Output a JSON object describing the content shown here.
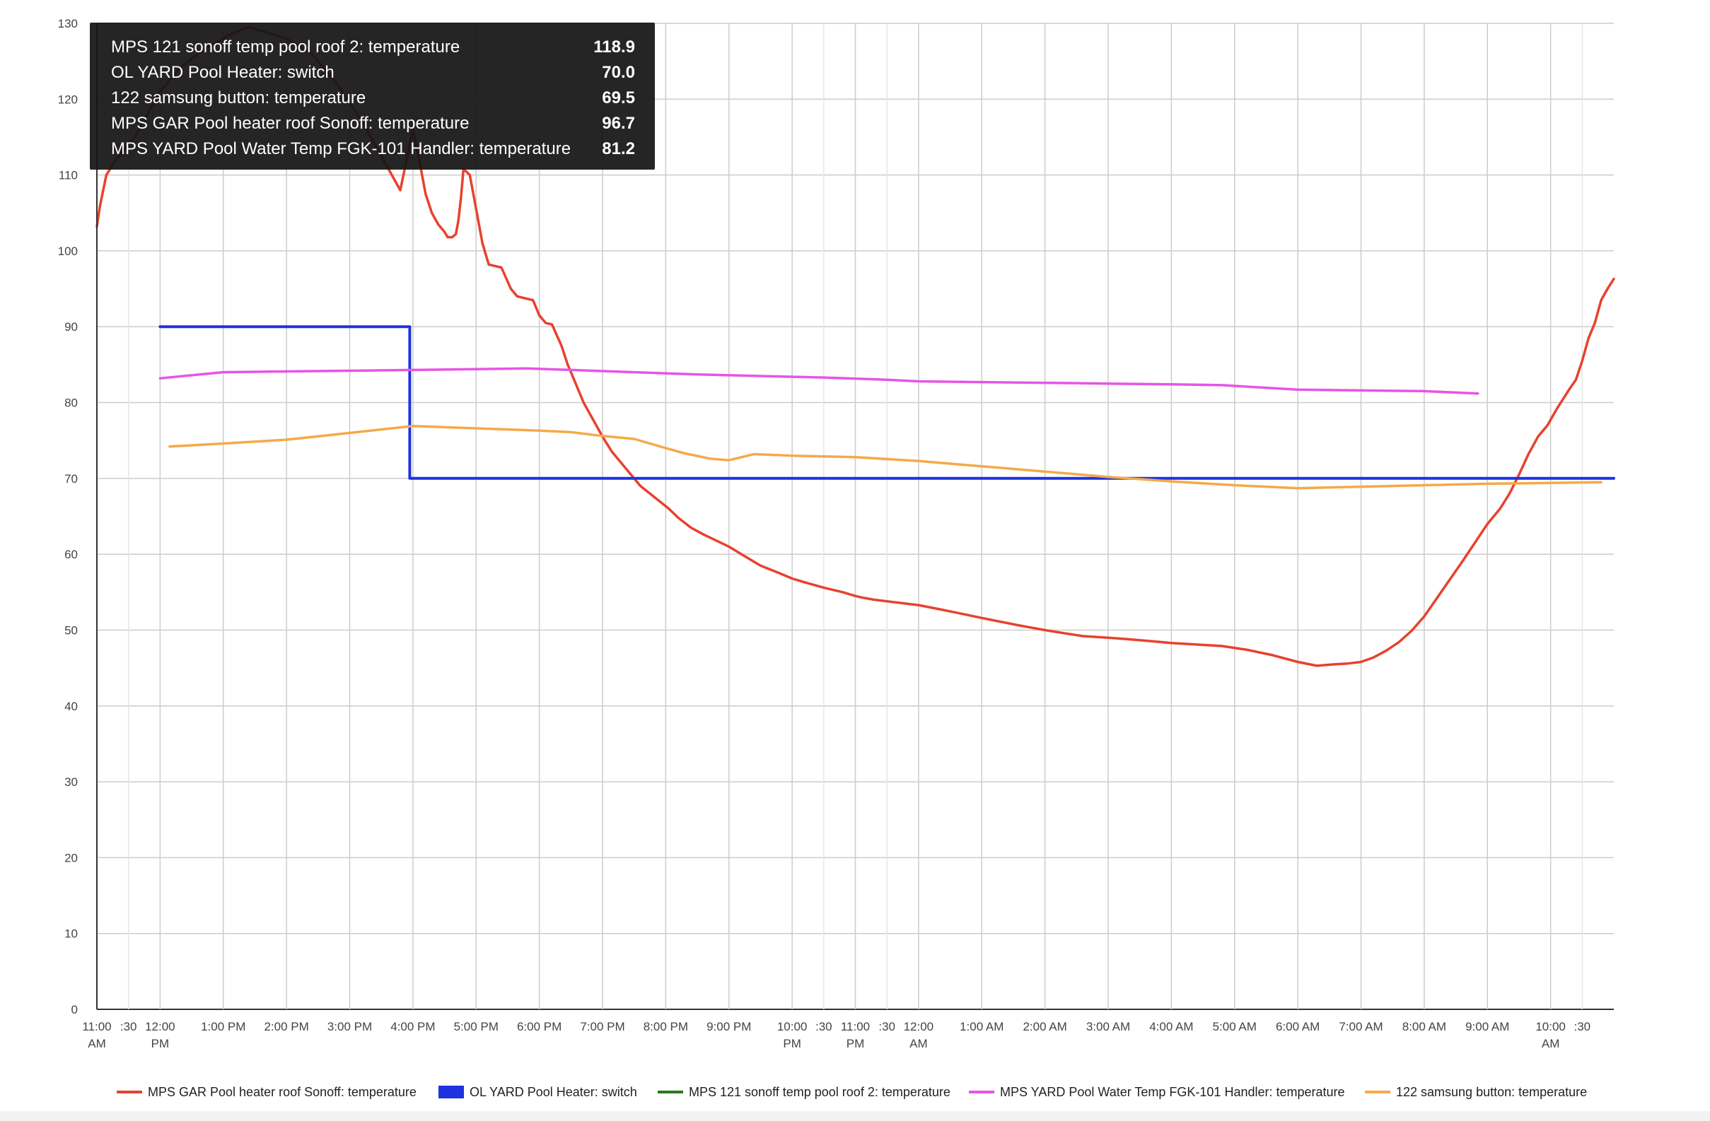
{
  "chart_data": {
    "type": "line",
    "title": "",
    "xlabel": "",
    "ylabel": "",
    "ylim": [
      0,
      130
    ],
    "y_ticks": [
      0,
      10,
      20,
      30,
      40,
      50,
      60,
      70,
      80,
      90,
      100,
      110,
      120,
      130
    ],
    "grid": true,
    "x_unit": "hours since 11:00 AM",
    "xlim": [
      0,
      24
    ],
    "x_ticks": [
      {
        "x": 0,
        "label": "11:00",
        "label2": "AM"
      },
      {
        "x": 0.5,
        "label": ":30",
        "label2": ""
      },
      {
        "x": 1,
        "label": "12:00",
        "label2": "PM"
      },
      {
        "x": 2,
        "label": "1:00 PM",
        "label2": ""
      },
      {
        "x": 3,
        "label": "2:00 PM",
        "label2": ""
      },
      {
        "x": 4,
        "label": "3:00 PM",
        "label2": ""
      },
      {
        "x": 5,
        "label": "4:00 PM",
        "label2": ""
      },
      {
        "x": 6,
        "label": "5:00 PM",
        "label2": ""
      },
      {
        "x": 7,
        "label": "6:00 PM",
        "label2": ""
      },
      {
        "x": 8,
        "label": "7:00 PM",
        "label2": ""
      },
      {
        "x": 9,
        "label": "8:00 PM",
        "label2": ""
      },
      {
        "x": 10,
        "label": "9:00 PM",
        "label2": ""
      },
      {
        "x": 11,
        "label": "10:00",
        "label2": "PM"
      },
      {
        "x": 11.5,
        "label": ":30",
        "label2": ""
      },
      {
        "x": 12,
        "label": "11:00",
        "label2": "PM"
      },
      {
        "x": 12.5,
        "label": ":30",
        "label2": ""
      },
      {
        "x": 13,
        "label": "12:00",
        "label2": "AM"
      },
      {
        "x": 14,
        "label": "1:00 AM",
        "label2": ""
      },
      {
        "x": 15,
        "label": "2:00 AM",
        "label2": ""
      },
      {
        "x": 16,
        "label": "3:00 AM",
        "label2": ""
      },
      {
        "x": 17,
        "label": "4:00 AM",
        "label2": ""
      },
      {
        "x": 18,
        "label": "5:00 AM",
        "label2": ""
      },
      {
        "x": 19,
        "label": "6:00 AM",
        "label2": ""
      },
      {
        "x": 20,
        "label": "7:00 AM",
        "label2": ""
      },
      {
        "x": 21,
        "label": "8:00 AM",
        "label2": ""
      },
      {
        "x": 22,
        "label": "9:00 AM",
        "label2": ""
      },
      {
        "x": 23,
        "label": "10:00",
        "label2": "AM"
      },
      {
        "x": 23.5,
        "label": ":30",
        "label2": ""
      }
    ],
    "series": [
      {
        "name": "MPS GAR Pool heater roof Sonoff: temperature",
        "color": "#e8412e",
        "step": false,
        "x": [
          0,
          0.05,
          0.15,
          0.3,
          0.45,
          0.6,
          0.8,
          1.0,
          1.3,
          1.6,
          1.9,
          2.1,
          2.25,
          2.4,
          2.6,
          2.8,
          3.0,
          3.2,
          3.4,
          3.6,
          3.8,
          4.0,
          4.2,
          4.4,
          4.6,
          4.8,
          5.0,
          5.1,
          5.2,
          5.3,
          5.4,
          5.5,
          5.55,
          5.62,
          5.68,
          5.72,
          5.76,
          5.8,
          5.9,
          6.0,
          6.1,
          6.2,
          6.3,
          6.4,
          6.55,
          6.65,
          6.75,
          6.9,
          7.0,
          7.1,
          7.2,
          7.35,
          7.45,
          7.5,
          7.6,
          7.7,
          7.8,
          7.9,
          8.0,
          8.15,
          8.3,
          8.45,
          8.6,
          8.75,
          8.9,
          9.05,
          9.2,
          9.4,
          9.6,
          9.8,
          10.0,
          10.2,
          10.5,
          10.8,
          11.0,
          11.2,
          11.5,
          11.8,
          12.0,
          12.1,
          12.3,
          12.6,
          13.0,
          13.3,
          13.6,
          14.0,
          14.3,
          14.6,
          15.0,
          15.3,
          15.6,
          16.0,
          16.3,
          16.6,
          17.0,
          17.4,
          17.8,
          18.2,
          18.6,
          19.0,
          19.3,
          19.6,
          19.8,
          20.0,
          20.2,
          20.4,
          20.6,
          20.8,
          21.0,
          21.2,
          21.4,
          21.6,
          21.8,
          22.0,
          22.1,
          22.2,
          22.35,
          22.5,
          22.65,
          22.8,
          22.95,
          23.1,
          23.2,
          23.3,
          23.4,
          23.5,
          23.6,
          23.7,
          23.8,
          23.9,
          24.0
        ],
        "values": [
          103.2,
          106.0,
          110.0,
          112.0,
          113.5,
          115.0,
          118.0,
          121.0,
          124.0,
          126.0,
          127.5,
          128.5,
          129.0,
          129.5,
          129.0,
          128.5,
          128.0,
          127.0,
          126.0,
          124.0,
          122.0,
          119.5,
          117.0,
          114.0,
          111.0,
          108.0,
          116.0,
          112.0,
          107.5,
          105.0,
          103.5,
          102.5,
          101.8,
          101.8,
          102.2,
          104.0,
          107.0,
          110.8,
          110.0,
          105.5,
          101.0,
          98.2,
          98.0,
          97.8,
          95.0,
          94.0,
          93.8,
          93.5,
          91.5,
          90.5,
          90.3,
          87.5,
          85.0,
          84.0,
          82.0,
          80.0,
          78.5,
          77.0,
          75.5,
          73.5,
          72.0,
          70.5,
          69.0,
          68.0,
          67.0,
          66.0,
          64.8,
          63.5,
          62.6,
          61.8,
          61.0,
          60.0,
          58.5,
          57.5,
          56.8,
          56.3,
          55.6,
          55.0,
          54.5,
          54.3,
          54.0,
          53.7,
          53.3,
          52.8,
          52.3,
          51.6,
          51.1,
          50.6,
          50.0,
          49.6,
          49.2,
          49.0,
          48.8,
          48.6,
          48.3,
          48.1,
          47.9,
          47.4,
          46.7,
          45.8,
          45.3,
          45.5,
          45.6,
          45.8,
          46.4,
          47.3,
          48.4,
          49.9,
          51.8,
          54.2,
          56.6,
          59.0,
          61.5,
          64.0,
          65.0,
          66.0,
          68.0,
          70.5,
          73.2,
          75.5,
          77.0,
          79.2,
          80.5,
          81.8,
          83.0,
          85.5,
          88.5,
          90.5,
          93.5,
          95.0,
          96.3
        ]
      },
      {
        "name": "OL YARD Pool Heater: switch",
        "color": "#1f32e0",
        "step": true,
        "x": [
          1.0,
          4.95,
          4.95,
          24.0
        ],
        "values": [
          90,
          90,
          70,
          70
        ]
      },
      {
        "name": "MPS 121 sonoff temp pool roof 2: temperature",
        "color": "#2a7a1a",
        "step": false,
        "x": [],
        "values": []
      },
      {
        "name": "MPS YARD Pool Water Temp FGK-101 Handler: temperature",
        "color": "#e655e6",
        "step": false,
        "x": [
          1.0,
          2.0,
          3.0,
          4.0,
          5.0,
          6.0,
          6.8,
          7.5,
          8.5,
          9.5,
          10.5,
          11.5,
          12.5,
          13.0,
          14.0,
          15.0,
          16.0,
          17.0,
          17.8,
          19.0,
          20.0,
          21.0,
          21.85
        ],
        "values": [
          83.2,
          84.0,
          84.1,
          84.2,
          84.3,
          84.4,
          84.5,
          84.3,
          84.0,
          83.7,
          83.5,
          83.3,
          83.0,
          82.8,
          82.7,
          82.6,
          82.5,
          82.4,
          82.3,
          81.7,
          81.6,
          81.5,
          81.2
        ]
      },
      {
        "name": "122 samsung button: temperature",
        "color": "#f5a94a",
        "step": false,
        "x": [
          1.15,
          2.0,
          3.0,
          4.0,
          5.0,
          6.0,
          7.0,
          7.5,
          8.0,
          8.5,
          9.0,
          9.3,
          9.7,
          10.0,
          10.4,
          11.0,
          12.0,
          13.0,
          14.0,
          15.0,
          16.0,
          17.0,
          18.0,
          19.0,
          20.0,
          21.0,
          22.0,
          23.0,
          23.8
        ],
        "values": [
          74.2,
          74.6,
          75.1,
          76.0,
          76.9,
          76.6,
          76.3,
          76.1,
          75.6,
          75.2,
          74.0,
          73.3,
          72.6,
          72.4,
          73.2,
          73.0,
          72.8,
          72.3,
          71.6,
          70.9,
          70.2,
          69.6,
          69.1,
          68.7,
          68.9,
          69.1,
          69.3,
          69.4,
          69.5
        ]
      }
    ],
    "legend_position": "bottom"
  },
  "tooltip": {
    "rows": [
      {
        "label": "MPS 121 sonoff temp pool roof 2: temperature",
        "value": "118.9"
      },
      {
        "label": "OL YARD Pool Heater: switch",
        "value": "70.0"
      },
      {
        "label": "122 samsung button: temperature",
        "value": "69.5"
      },
      {
        "label": "MPS GAR Pool heater roof Sonoff: temperature",
        "value": "96.7"
      },
      {
        "label": "MPS YARD Pool Water Temp FGK-101 Handler: temperature",
        "value": "81.2"
      }
    ]
  }
}
